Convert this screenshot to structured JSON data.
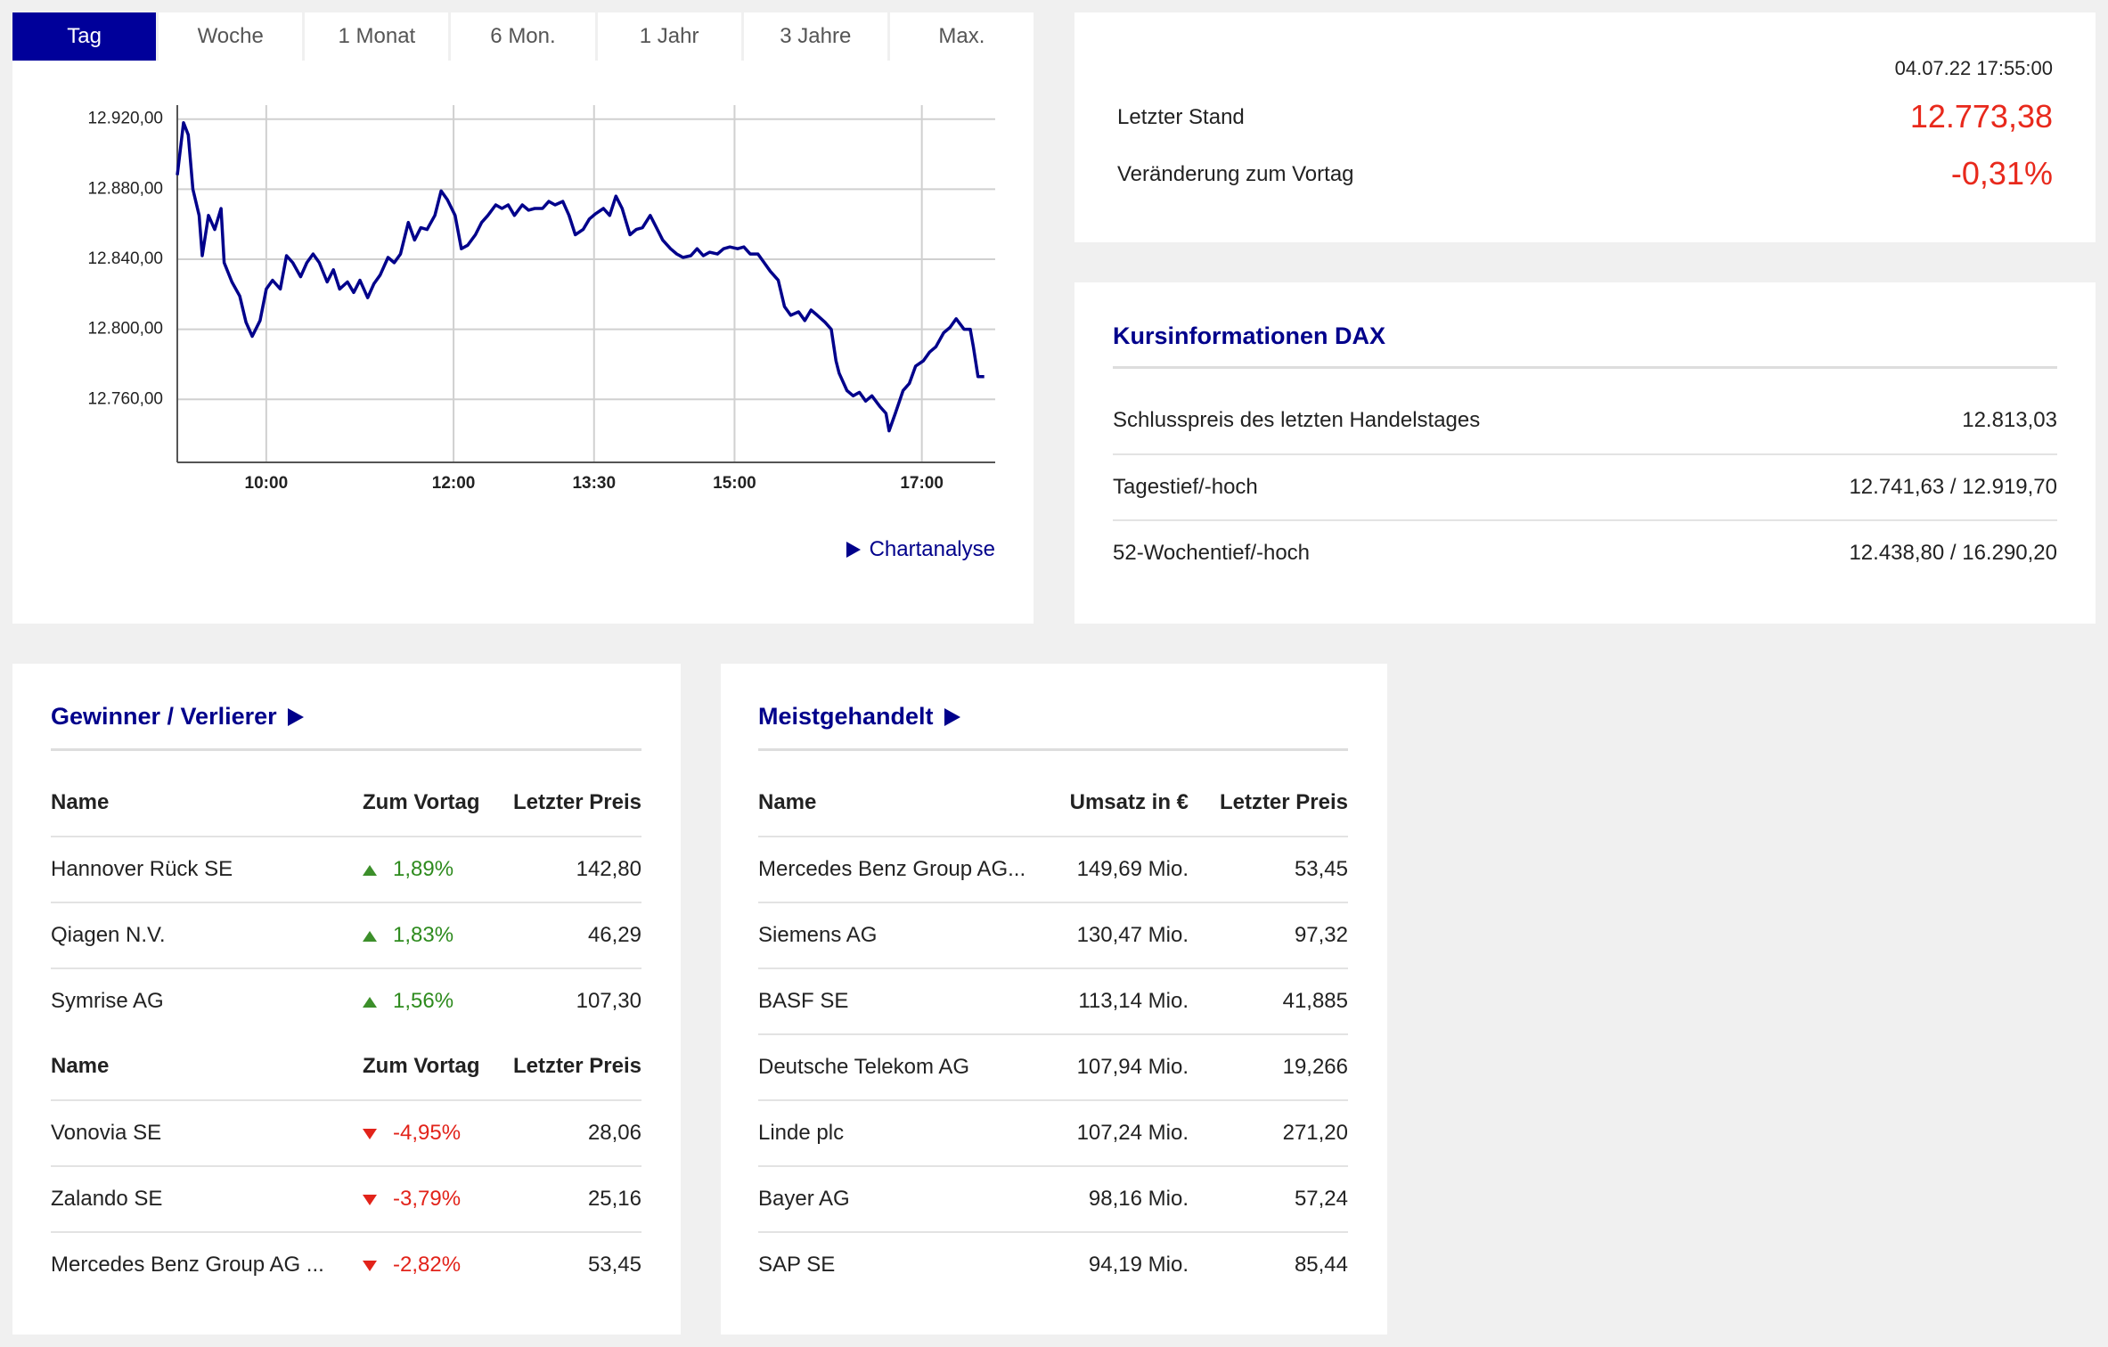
{
  "tabs": [
    "Tag",
    "Woche",
    "1 Monat",
    "6 Mon.",
    "1 Jahr",
    "3 Jahre",
    "Max."
  ],
  "active_tab": 0,
  "chart_data": {
    "type": "line",
    "x": [
      543,
      547,
      550,
      553,
      557,
      559,
      563,
      567,
      571,
      573,
      578,
      583,
      587,
      591,
      596,
      600,
      604,
      609,
      613,
      617,
      622,
      626,
      630,
      634,
      639,
      643,
      647,
      652,
      656,
      660,
      665,
      669,
      673,
      678,
      682,
      686,
      691,
      695,
      699,
      703,
      708,
      712,
      716,
      721,
      725,
      729,
      734,
      738,
      742,
      747,
      751,
      755,
      759,
      764,
      768,
      772,
      777,
      781,
      785,
      790,
      794,
      798,
      803,
      807,
      811,
      816,
      820,
      824,
      828,
      833,
      837,
      841,
      846,
      850,
      854,
      859,
      863,
      867,
      872,
      876,
      880,
      884,
      889,
      893,
      897,
      902,
      906,
      910,
      915,
      919,
      923,
      928,
      932,
      936,
      941,
      945,
      949,
      953,
      958,
      962,
      965,
      967,
      972,
      976,
      980,
      984,
      988,
      993,
      997,
      999,
      1003,
      1008,
      1012,
      1016,
      1021,
      1025,
      1029,
      1034,
      1038,
      1042,
      1047,
      1051,
      1053,
      1056,
      1060
    ],
    "values": [
      12888,
      12918,
      12911,
      12880,
      12865,
      12842,
      12865,
      12857,
      12869,
      12838,
      12827,
      12819,
      12804,
      12796,
      12805,
      12823,
      12828,
      12823,
      12842,
      12838,
      12830,
      12838,
      12843,
      12838,
      12827,
      12834,
      12823,
      12827,
      12821,
      12828,
      12818,
      12826,
      12831,
      12841,
      12838,
      12843,
      12861,
      12851,
      12858,
      12857,
      12865,
      12879,
      12874,
      12865,
      12846,
      12848,
      12854,
      12861,
      12865,
      12871,
      12869,
      12871,
      12865,
      12871,
      12868,
      12869,
      12869,
      12873,
      12871,
      12873,
      12865,
      12854,
      12857,
      12863,
      12866,
      12869,
      12865,
      12876,
      12869,
      12854,
      12857,
      12858,
      12865,
      12858,
      12851,
      12846,
      12843,
      12841,
      12842,
      12846,
      12842,
      12844,
      12843,
      12846,
      12847,
      12846,
      12847,
      12843,
      12843,
      12838,
      12833,
      12828,
      12813,
      12808,
      12810,
      12805,
      12811,
      12808,
      12804,
      12800,
      12782,
      12775,
      12765,
      12762,
      12764,
      12759,
      12762,
      12756,
      12752,
      12742,
      12752,
      12765,
      12769,
      12779,
      12782,
      12787,
      12790,
      12798,
      12801,
      12806,
      12800,
      12800,
      12790,
      12773,
      12773
    ],
    "color": "#00008b",
    "xlim": [
      543,
      1067
    ],
    "xticks": [
      {
        "value": 600,
        "label": "10:00"
      },
      {
        "value": 720,
        "label": "12:00"
      },
      {
        "value": 810,
        "label": "13:30"
      },
      {
        "value": 900,
        "label": "15:00"
      },
      {
        "value": 1020,
        "label": "17:00"
      }
    ],
    "ylim": [
      12724,
      12928
    ],
    "yticks": [
      {
        "value": 12760,
        "label": "12.760,00"
      },
      {
        "value": 12800,
        "label": "12.800,00"
      },
      {
        "value": 12840,
        "label": "12.840,00"
      },
      {
        "value": 12880,
        "label": "12.880,00"
      },
      {
        "value": 12920,
        "label": "12.920,00"
      }
    ],
    "grid": true
  },
  "chart_link": "Chartanalyse",
  "quote": {
    "timestamp": "04.07.22 17:55:00",
    "last_label": "Letzter Stand",
    "last": "12.773,38",
    "change_label": "Veränderung zum Vortag",
    "change": "-0,31%"
  },
  "info": {
    "title": "Kursinformationen DAX",
    "rows": [
      [
        "Schlusspreis des letzten Handelstages",
        "12.813,03"
      ],
      [
        "Tagestief/-hoch",
        "12.741,63 / 12.919,70"
      ],
      [
        "52-Wochentief/-hoch",
        "12.438,80 / 16.290,20"
      ]
    ]
  },
  "movers": {
    "title": "Gewinner / Verlierer",
    "groups": [
      {
        "header": [
          "Name",
          "Zum Vortag",
          "Letzter Preis"
        ],
        "rows": [
          [
            "Hannover Rück SE",
            "1,89%",
            "142,80"
          ],
          [
            "Qiagen N.V.",
            "1,83%",
            "46,29"
          ],
          [
            "Symrise AG",
            "1,56%",
            "107,30"
          ]
        ]
      },
      {
        "header": [
          "Name",
          "Zum Vortag",
          "Letzter Preis"
        ],
        "rows": [
          [
            "Vonovia SE",
            "-4,95%",
            "28,06"
          ],
          [
            "Zalando SE",
            "-3,79%",
            "25,16"
          ],
          [
            "Mercedes Benz Group AG ...",
            "-2,82%",
            "53,45"
          ]
        ]
      }
    ]
  },
  "most_traded": {
    "title": "Meistgehandelt",
    "header": [
      "Name",
      "Umsatz in €",
      "Letzter Preis"
    ],
    "rows": [
      [
        "Mercedes Benz Group AG...",
        "149,69 Mio.",
        "53,45"
      ],
      [
        "Siemens AG",
        "130,47 Mio.",
        "97,32"
      ],
      [
        "BASF SE",
        "113,14 Mio.",
        "41,885"
      ],
      [
        "Deutsche Telekom AG",
        "107,94 Mio.",
        "19,266"
      ],
      [
        "Linde plc",
        "107,24 Mio.",
        "271,20"
      ],
      [
        "Bayer AG",
        "98,16 Mio.",
        "57,24"
      ],
      [
        "SAP SE",
        "94,19 Mio.",
        "85,44"
      ]
    ]
  }
}
